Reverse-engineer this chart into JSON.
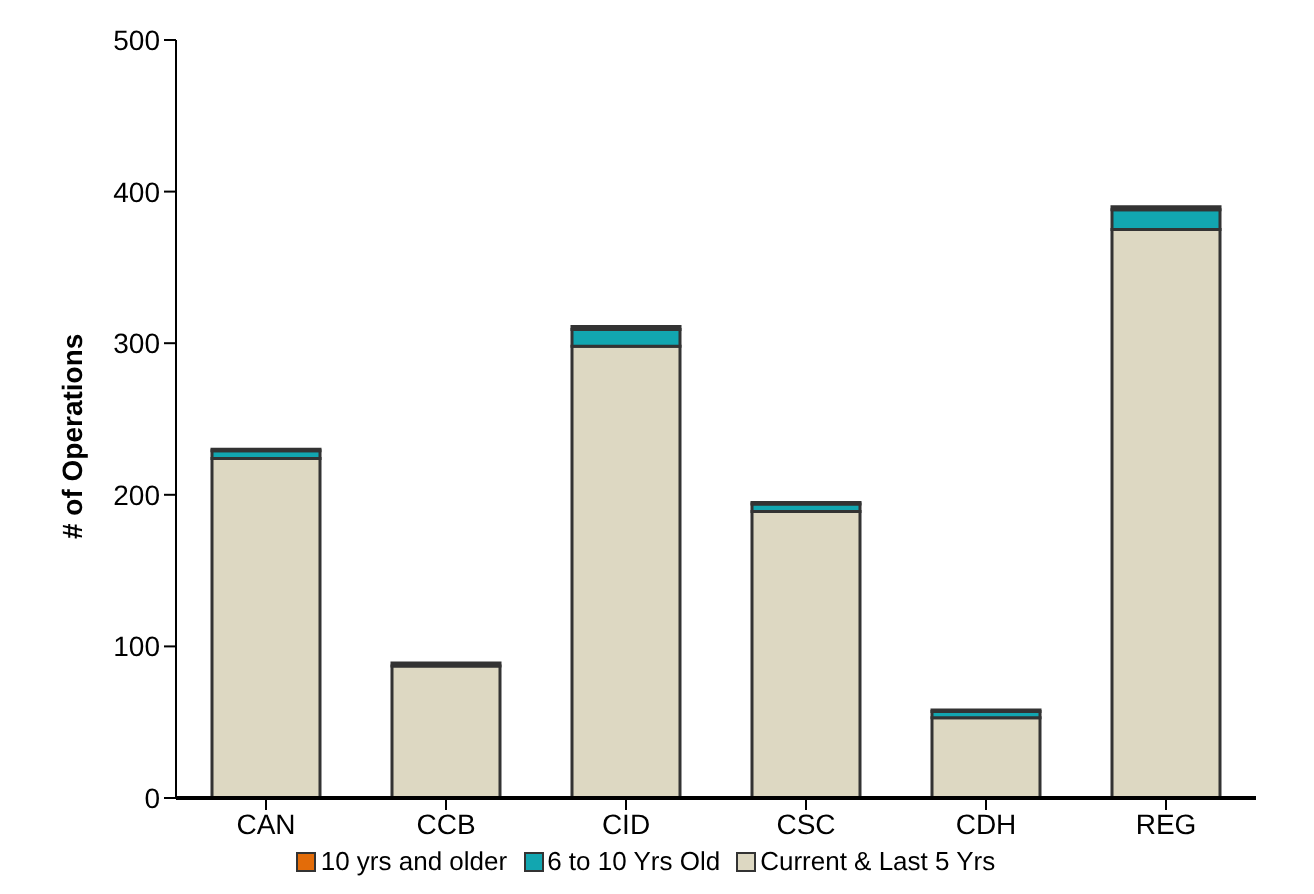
{
  "chart_data": {
    "type": "bar",
    "ylabel": "# of Operations",
    "categories": [
      "CAN",
      "CCB",
      "CID",
      "CSC",
      "CDH",
      "REG"
    ],
    "stacked": true,
    "series": [
      {
        "name": "Current & Last 5 Yrs",
        "color": "#ddd8c2",
        "values": [
          224,
          87,
          298,
          189,
          53,
          375
        ]
      },
      {
        "name": "6 to 10 Yrs Old",
        "color": "#12a6b0",
        "values": [
          5,
          null,
          11,
          5,
          4,
          13
        ]
      },
      {
        "name": "10 yrs and older",
        "color": "#e36c09",
        "values": [
          1,
          2,
          2,
          1,
          1,
          2
        ]
      }
    ],
    "ylim": [
      0,
      500
    ],
    "yticks": [
      0,
      100,
      200,
      300,
      400,
      500
    ],
    "grid": false,
    "legend": "bottom"
  }
}
